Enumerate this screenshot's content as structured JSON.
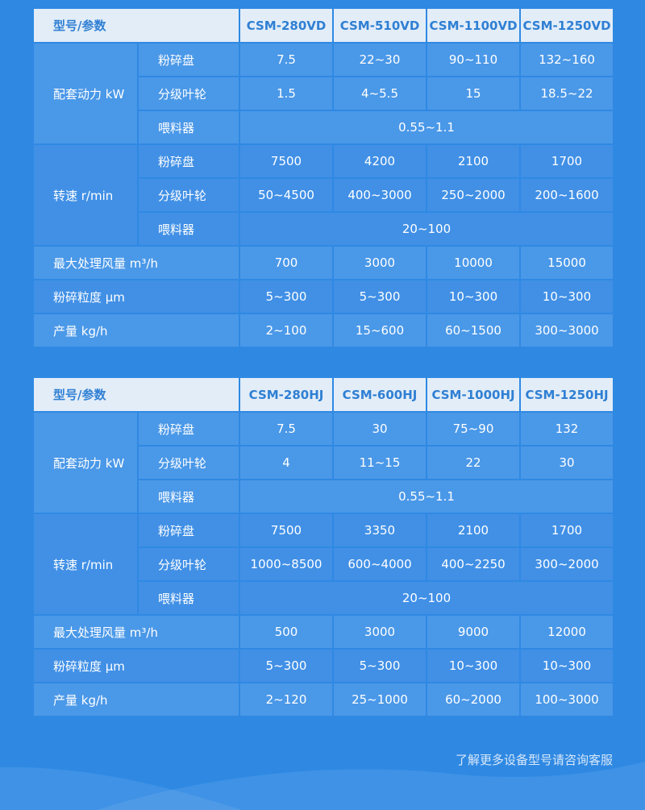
{
  "tables": [
    {
      "header": [
        "型号/参数",
        "CSM-280VD",
        "CSM-510VD",
        "CSM-1100VD",
        "CSM-1250VD"
      ],
      "groups": [
        {
          "label": "配套动力 kW",
          "rows": [
            {
              "label": "粉碎盘",
              "values": [
                "7.5",
                "22~30",
                "90~110",
                "132~160"
              ]
            },
            {
              "label": "分级叶轮",
              "values": [
                "1.5",
                "4~5.5",
                "15",
                "18.5~22"
              ]
            },
            {
              "label": "喂料器",
              "values": [
                "0.55~1.1"
              ]
            }
          ]
        },
        {
          "label": "转速 r/min",
          "rows": [
            {
              "label": "粉碎盘",
              "values": [
                "7500",
                "4200",
                "2100",
                "1700"
              ]
            },
            {
              "label": "分级叶轮",
              "values": [
                "50~4500",
                "400~3000",
                "250~2000",
                "200~1600"
              ]
            },
            {
              "label": "喂料器",
              "values": [
                "20~100"
              ]
            }
          ]
        }
      ],
      "rows": [
        {
          "label": "最大处理风量 m³/h",
          "values": [
            "700",
            "3000",
            "10000",
            "15000"
          ]
        },
        {
          "label": "粉碎粒度 μm",
          "values": [
            "5~300",
            "5~300",
            "10~300",
            "10~300"
          ]
        },
        {
          "label": "产量 kg/h",
          "values": [
            "2~100",
            "15~600",
            "60~1500",
            "300~3000"
          ]
        }
      ]
    },
    {
      "header": [
        "型号/参数",
        "CSM-280HJ",
        "CSM-600HJ",
        "CSM-1000HJ",
        "CSM-1250HJ"
      ],
      "groups": [
        {
          "label": "配套动力 kW",
          "rows": [
            {
              "label": "粉碎盘",
              "values": [
                "7.5",
                "30",
                "75~90",
                "132"
              ]
            },
            {
              "label": "分级叶轮",
              "values": [
                "4",
                "11~15",
                "22",
                "30"
              ]
            },
            {
              "label": "喂料器",
              "values": [
                "0.55~1.1"
              ]
            }
          ]
        },
        {
          "label": "转速 r/min",
          "rows": [
            {
              "label": "粉碎盘",
              "values": [
                "7500",
                "3350",
                "2100",
                "1700"
              ]
            },
            {
              "label": "分级叶轮",
              "values": [
                "1000~8500",
                "600~4000",
                "400~2250",
                "300~2000"
              ]
            },
            {
              "label": "喂料器",
              "values": [
                "20~100"
              ]
            }
          ]
        }
      ],
      "rows": [
        {
          "label": "最大处理风量 m³/h",
          "values": [
            "500",
            "3000",
            "9000",
            "12000"
          ]
        },
        {
          "label": "粉碎粒度 μm",
          "values": [
            "5~300",
            "5~300",
            "10~300",
            "10~300"
          ]
        },
        {
          "label": "产量 kg/h",
          "values": [
            "2~120",
            "25~1000",
            "60~2000",
            "100~3000"
          ]
        }
      ]
    }
  ],
  "footer": "了解更多设备型号请咨询客服",
  "colors": {
    "background": "#2f89e3",
    "header_bg": "#e2edf8",
    "header_text": "#2f7fd3"
  }
}
